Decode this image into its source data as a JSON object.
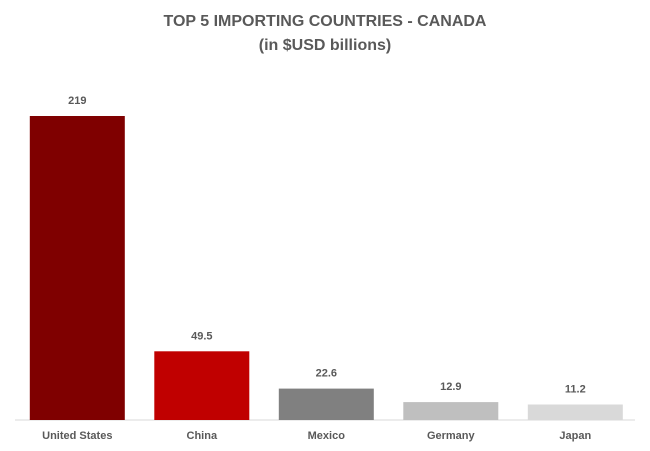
{
  "chart_data": {
    "type": "bar",
    "title": "TOP 5 IMPORTING COUNTRIES - CANADA",
    "subtitle": "(in $USD billions)",
    "categories": [
      "United States",
      "China",
      "Mexico",
      "Germany",
      "Japan"
    ],
    "values": [
      219,
      49.5,
      22.6,
      12.9,
      11.2
    ],
    "value_labels": [
      "219",
      "49.5",
      "22.6",
      "12.9",
      "11.2"
    ],
    "colors": [
      "#7f0000",
      "#c00000",
      "#808080",
      "#bfbfbf",
      "#d9d9d9"
    ],
    "xlabel": "",
    "ylabel": "",
    "ylim": [
      0,
      219
    ],
    "grid": false,
    "legend": "none",
    "data_labels": true
  }
}
